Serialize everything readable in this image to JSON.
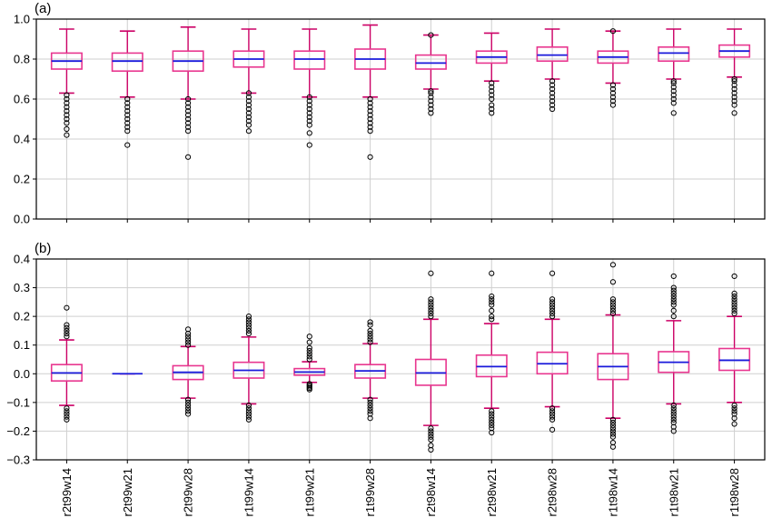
{
  "chart_data": [
    {
      "type": "box",
      "panel_label": "(a)",
      "categories": [
        "r2t99w14",
        "r2t99w21",
        "r2t99w28",
        "r1t99w14",
        "r1t99w21",
        "r1t99w28",
        "r2t98w14",
        "r2t98w21",
        "r2t98w28",
        "r1t98w14",
        "r1t98w21",
        "r1t98w28"
      ],
      "ylim": [
        0.0,
        1.0
      ],
      "yticks": [
        0.0,
        0.2,
        0.4,
        0.6,
        0.8,
        1.0
      ],
      "ytick_labels": [
        "0.0",
        "0.2",
        "0.4",
        "0.6",
        "0.8",
        "1.0"
      ],
      "grid": true,
      "boxes": [
        {
          "whislo": 0.63,
          "q1": 0.75,
          "med": 0.79,
          "q3": 0.83,
          "whishi": 0.95,
          "fliers": [
            0.42,
            0.45,
            0.48,
            0.5,
            0.52,
            0.54,
            0.56,
            0.58,
            0.6,
            0.62
          ]
        },
        {
          "whislo": 0.61,
          "q1": 0.74,
          "med": 0.79,
          "q3": 0.83,
          "whishi": 0.94,
          "fliers": [
            0.37,
            0.44,
            0.46,
            0.48,
            0.5,
            0.52,
            0.54,
            0.56,
            0.58,
            0.6
          ]
        },
        {
          "whislo": 0.6,
          "q1": 0.74,
          "med": 0.79,
          "q3": 0.84,
          "whishi": 0.96,
          "fliers": [
            0.31,
            0.44,
            0.46,
            0.48,
            0.5,
            0.52,
            0.54,
            0.56,
            0.58,
            0.6
          ]
        },
        {
          "whislo": 0.63,
          "q1": 0.76,
          "med": 0.8,
          "q3": 0.84,
          "whishi": 0.95,
          "fliers": [
            0.44,
            0.47,
            0.49,
            0.51,
            0.53,
            0.55,
            0.57,
            0.59,
            0.61,
            0.63
          ]
        },
        {
          "whislo": 0.61,
          "q1": 0.75,
          "med": 0.8,
          "q3": 0.84,
          "whishi": 0.95,
          "fliers": [
            0.37,
            0.43,
            0.47,
            0.49,
            0.51,
            0.53,
            0.55,
            0.57,
            0.59,
            0.61
          ]
        },
        {
          "whislo": 0.61,
          "q1": 0.75,
          "med": 0.8,
          "q3": 0.85,
          "whishi": 0.97,
          "fliers": [
            0.31,
            0.44,
            0.46,
            0.48,
            0.5,
            0.52,
            0.54,
            0.56,
            0.58,
            0.6
          ]
        },
        {
          "whislo": 0.65,
          "q1": 0.75,
          "med": 0.78,
          "q3": 0.82,
          "whishi": 0.92,
          "fliers": [
            0.53,
            0.55,
            0.57,
            0.59,
            0.61,
            0.63,
            0.64,
            0.92
          ]
        },
        {
          "whislo": 0.69,
          "q1": 0.78,
          "med": 0.81,
          "q3": 0.84,
          "whishi": 0.93,
          "fliers": [
            0.53,
            0.55,
            0.57,
            0.6,
            0.62,
            0.64,
            0.66,
            0.68
          ]
        },
        {
          "whislo": 0.7,
          "q1": 0.79,
          "med": 0.82,
          "q3": 0.86,
          "whishi": 0.95,
          "fliers": [
            0.55,
            0.57,
            0.59,
            0.61,
            0.63,
            0.65,
            0.67,
            0.69
          ]
        },
        {
          "whislo": 0.68,
          "q1": 0.78,
          "med": 0.81,
          "q3": 0.84,
          "whishi": 0.94,
          "fliers": [
            0.57,
            0.59,
            0.61,
            0.63,
            0.65,
            0.67,
            0.94
          ]
        },
        {
          "whislo": 0.7,
          "q1": 0.79,
          "med": 0.83,
          "q3": 0.86,
          "whishi": 0.95,
          "fliers": [
            0.53,
            0.58,
            0.6,
            0.62,
            0.64,
            0.66,
            0.68,
            0.69
          ]
        },
        {
          "whislo": 0.71,
          "q1": 0.81,
          "med": 0.84,
          "q3": 0.87,
          "whishi": 0.95,
          "fliers": [
            0.53,
            0.57,
            0.59,
            0.61,
            0.63,
            0.65,
            0.67,
            0.69,
            0.7
          ]
        }
      ]
    },
    {
      "type": "box",
      "panel_label": "(b)",
      "categories": [
        "r2t99w14",
        "r2t99w21",
        "r2t99w28",
        "r1t99w14",
        "r1t99w21",
        "r1t99w28",
        "r2t98w14",
        "r2t98w21",
        "r2t98w28",
        "r1t98w14",
        "r1t98w21",
        "r1t98w28"
      ],
      "ylim": [
        -0.3,
        0.4
      ],
      "yticks": [
        -0.3,
        -0.2,
        -0.1,
        0.0,
        0.1,
        0.2,
        0.3,
        0.4
      ],
      "ytick_labels": [
        "−0.3",
        "−0.2",
        "−0.1",
        "0.0",
        "0.1",
        "0.2",
        "0.3",
        "0.4"
      ],
      "grid": true,
      "boxes": [
        {
          "whislo": -0.11,
          "q1": -0.025,
          "med": 0.003,
          "q3": 0.032,
          "whishi": 0.118,
          "fliers": [
            0.23,
            0.17,
            0.16,
            0.15,
            0.14,
            0.13,
            -0.12,
            -0.13,
            -0.14,
            -0.15,
            -0.16
          ]
        },
        {
          "whislo": 0.0,
          "q1": 0.0,
          "med": 0.0,
          "q3": 0.0,
          "whishi": 0.0,
          "fliers": []
        },
        {
          "whislo": -0.085,
          "q1": -0.02,
          "med": 0.005,
          "q3": 0.028,
          "whishi": 0.095,
          "fliers": [
            0.155,
            0.14,
            0.13,
            0.12,
            0.11,
            0.1,
            -0.09,
            -0.1,
            -0.11,
            -0.12,
            -0.13,
            -0.14
          ]
        },
        {
          "whislo": -0.105,
          "q1": -0.015,
          "med": 0.012,
          "q3": 0.04,
          "whishi": 0.128,
          "fliers": [
            0.2,
            0.19,
            0.18,
            0.17,
            0.16,
            0.15,
            0.14,
            -0.11,
            -0.12,
            -0.13,
            -0.14,
            -0.15,
            -0.16
          ]
        },
        {
          "whislo": -0.03,
          "q1": -0.005,
          "med": 0.006,
          "q3": 0.018,
          "whishi": 0.042,
          "fliers": [
            0.13,
            0.11,
            0.09,
            0.08,
            0.07,
            0.06,
            0.05,
            -0.035,
            -0.04,
            -0.045,
            -0.05,
            -0.055
          ]
        },
        {
          "whislo": -0.085,
          "q1": -0.015,
          "med": 0.01,
          "q3": 0.032,
          "whishi": 0.105,
          "fliers": [
            0.18,
            0.17,
            0.15,
            0.14,
            0.13,
            0.12,
            0.11,
            -0.09,
            -0.1,
            -0.11,
            -0.12,
            -0.13,
            -0.14,
            -0.155
          ]
        },
        {
          "whislo": -0.18,
          "q1": -0.04,
          "med": 0.003,
          "q3": 0.05,
          "whishi": 0.19,
          "fliers": [
            0.35,
            0.26,
            0.25,
            0.24,
            0.23,
            0.22,
            0.21,
            0.2,
            -0.19,
            -0.2,
            -0.21,
            -0.22,
            -0.23,
            -0.25,
            -0.265
          ]
        },
        {
          "whislo": -0.12,
          "q1": -0.01,
          "med": 0.025,
          "q3": 0.065,
          "whishi": 0.175,
          "fliers": [
            0.35,
            0.27,
            0.26,
            0.25,
            0.24,
            0.22,
            0.2,
            0.19,
            -0.13,
            -0.14,
            -0.15,
            -0.16,
            -0.17,
            -0.18,
            -0.19,
            -0.205
          ]
        },
        {
          "whislo": -0.115,
          "q1": 0.0,
          "med": 0.035,
          "q3": 0.075,
          "whishi": 0.19,
          "fliers": [
            0.35,
            0.26,
            0.25,
            0.24,
            0.23,
            0.22,
            0.21,
            0.2,
            -0.12,
            -0.13,
            -0.14,
            -0.15,
            -0.16,
            -0.195
          ]
        },
        {
          "whislo": -0.155,
          "q1": -0.02,
          "med": 0.025,
          "q3": 0.07,
          "whishi": 0.205,
          "fliers": [
            0.38,
            0.32,
            0.26,
            0.25,
            0.24,
            0.23,
            0.22,
            0.21,
            -0.16,
            -0.17,
            -0.18,
            -0.19,
            -0.2,
            -0.21,
            -0.22,
            -0.24,
            -0.255
          ]
        },
        {
          "whislo": -0.105,
          "q1": 0.005,
          "med": 0.04,
          "q3": 0.077,
          "whishi": 0.185,
          "fliers": [
            0.34,
            0.3,
            0.29,
            0.28,
            0.27,
            0.26,
            0.25,
            0.24,
            0.22,
            0.2,
            -0.11,
            -0.12,
            -0.13,
            -0.14,
            -0.15,
            -0.16,
            -0.17,
            -0.185,
            -0.2
          ]
        },
        {
          "whislo": -0.1,
          "q1": 0.012,
          "med": 0.047,
          "q3": 0.088,
          "whishi": 0.2,
          "fliers": [
            0.34,
            0.28,
            0.27,
            0.26,
            0.25,
            0.24,
            0.23,
            0.22,
            0.21,
            -0.11,
            -0.12,
            -0.13,
            -0.14,
            -0.155,
            -0.175
          ]
        }
      ]
    }
  ],
  "colors": {
    "box": "#e8368f",
    "median": "#1a1adb",
    "whisker": "#cc0066",
    "flier": "#000000",
    "grid": "#cfcfcf",
    "axis": "#000000"
  }
}
